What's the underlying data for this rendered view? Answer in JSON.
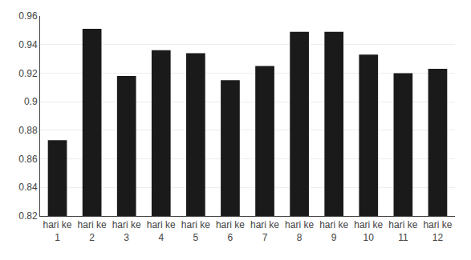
{
  "chart_data": {
    "type": "bar",
    "categories": [
      "hari ke\n1",
      "hari ke\n2",
      "hari ke\n3",
      "hari ke\n4",
      "hari ke\n5",
      "hari ke\n6",
      "hari ke\n7",
      "hari ke\n8",
      "hari ke\n9",
      "hari ke\n10",
      "hari ke\n11",
      "hari ke\n12"
    ],
    "values": [
      0.873,
      0.951,
      0.918,
      0.936,
      0.934,
      0.915,
      0.925,
      0.949,
      0.949,
      0.933,
      0.92,
      0.923
    ],
    "color": "#1a1a1a",
    "ylim": [
      0.82,
      0.96
    ],
    "yticks": [
      0.82,
      0.84,
      0.86,
      0.88,
      0.9,
      0.92,
      0.94,
      0.96
    ],
    "grid": true
  }
}
